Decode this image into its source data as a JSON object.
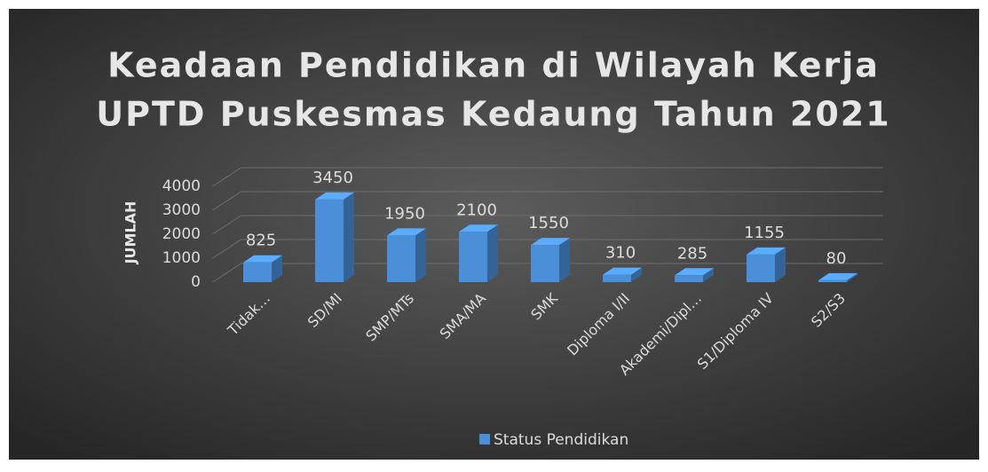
{
  "chart_data": {
    "type": "bar3d",
    "title": [
      "Keadaan Pendidikan di Wilayah Kerja",
      "UPTD Puskesmas Kedaung Tahun 2021"
    ],
    "y_label": "JUMLAH",
    "categories": [
      "Tidak…",
      "SD/MI",
      "SMP/MTs",
      "SMA/MA",
      "SMK",
      "Diploma I/II",
      "Akademi/Dipl…",
      "S1/Diploma IV",
      "S2/S3"
    ],
    "series": [
      {
        "name": "Status Pendidikan",
        "color": "#4a8fd8",
        "values": [
          825,
          3450,
          1950,
          2100,
          1550,
          310,
          285,
          1155,
          80
        ]
      }
    ],
    "ylim": [
      0,
      4000
    ],
    "yticks": [
      0,
      1000,
      2000,
      3000,
      4000
    ],
    "grid": true,
    "legend": "bottom"
  }
}
